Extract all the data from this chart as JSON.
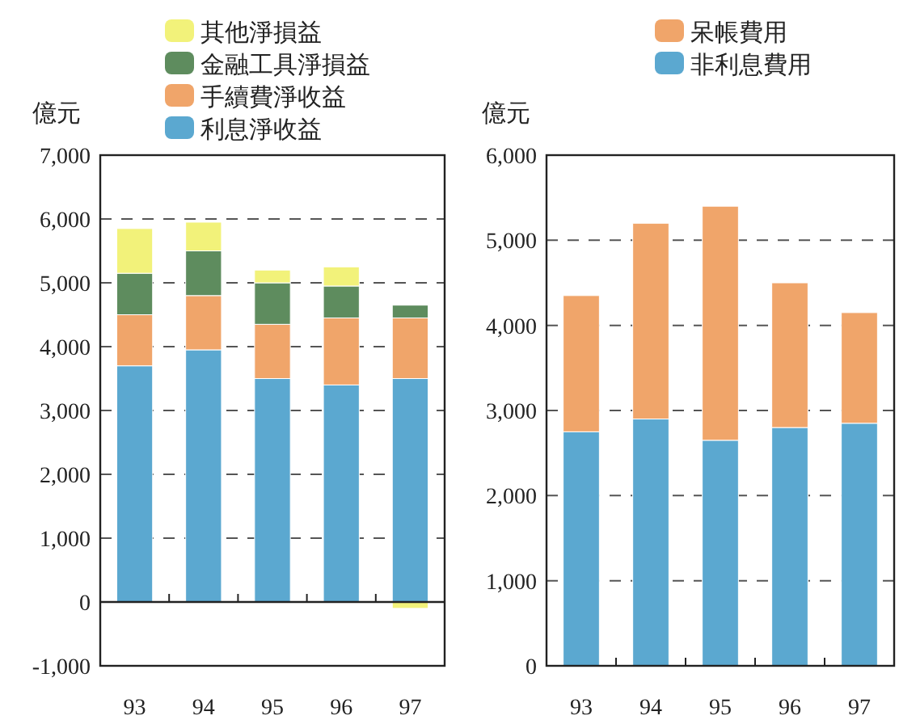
{
  "chart_data": [
    {
      "type": "bar",
      "stacked": true,
      "ylabel": "億元",
      "categories": [
        "93",
        "94",
        "95",
        "96",
        "97"
      ],
      "ylim": [
        -1000,
        7000
      ],
      "yticks": [
        {
          "value": -1000,
          "label": "-1,000"
        },
        0,
        {
          "value": 1000,
          "label": "1,000"
        },
        {
          "value": 2000,
          "label": "2,000"
        },
        {
          "value": 3000,
          "label": "3,000"
        },
        {
          "value": 4000,
          "label": "4,000"
        },
        {
          "value": 5000,
          "label": "5,000"
        },
        {
          "value": 6000,
          "label": "6,000"
        },
        {
          "value": 7000,
          "label": "7,000"
        }
      ],
      "grid": "y",
      "legend": "top",
      "series": [
        {
          "name": "利息淨收益",
          "color": "#5ba8d0",
          "values": [
            3700,
            3950,
            3500,
            3400,
            3500
          ]
        },
        {
          "name": "手續費淨收益",
          "color": "#f0a56a",
          "values": [
            800,
            850,
            850,
            1050,
            950
          ]
        },
        {
          "name": "金融工具淨損益",
          "color": "#5e8c5e",
          "values": [
            650,
            700,
            650,
            500,
            200
          ]
        },
        {
          "name": "其他淨損益",
          "color": "#f2f27a",
          "values": [
            700,
            450,
            200,
            300,
            -100
          ]
        }
      ]
    },
    {
      "type": "bar",
      "stacked": true,
      "ylabel": "億元",
      "categories": [
        "93",
        "94",
        "95",
        "96",
        "97"
      ],
      "ylim": [
        0,
        6000
      ],
      "yticks": [
        0,
        {
          "value": 1000,
          "label": "1,000"
        },
        {
          "value": 2000,
          "label": "2,000"
        },
        {
          "value": 3000,
          "label": "3,000"
        },
        {
          "value": 4000,
          "label": "4,000"
        },
        {
          "value": 5000,
          "label": "5,000"
        },
        {
          "value": 6000,
          "label": "6,000"
        }
      ],
      "grid": "y",
      "legend": "top",
      "series": [
        {
          "name": "非利息費用",
          "color": "#5ba8d0",
          "values": [
            2750,
            2900,
            2650,
            2800,
            2850
          ]
        },
        {
          "name": "呆帳費用",
          "color": "#f0a56a",
          "values": [
            1600,
            2300,
            2750,
            1700,
            1300
          ]
        }
      ]
    }
  ]
}
